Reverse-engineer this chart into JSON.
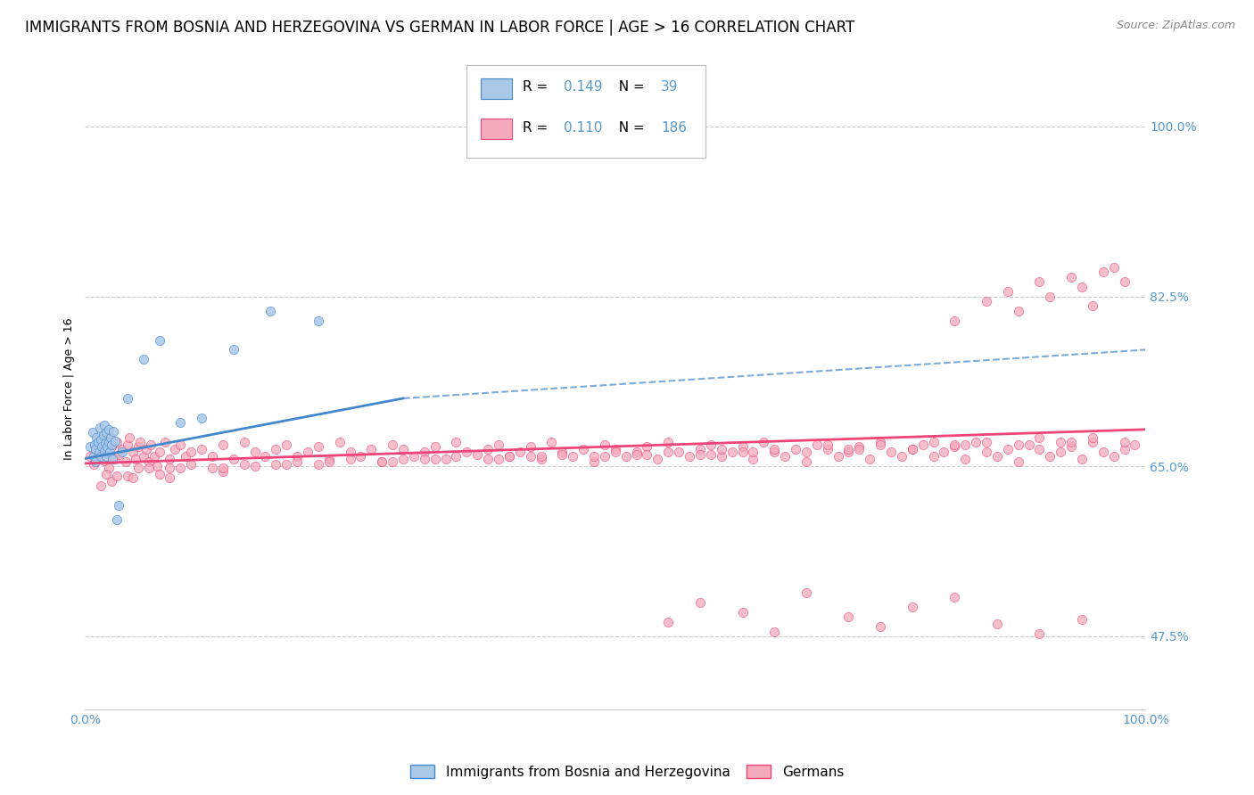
{
  "title": "IMMIGRANTS FROM BOSNIA AND HERZEGOVINA VS GERMAN IN LABOR FORCE | AGE > 16 CORRELATION CHART",
  "source": "Source: ZipAtlas.com",
  "ylabel": "In Labor Force | Age > 16",
  "legend1_label": "Immigrants from Bosnia and Herzegovina",
  "legend2_label": "Germans",
  "R1": 0.149,
  "N1": 39,
  "R2": 0.11,
  "N2": 186,
  "xlim": [
    0.0,
    1.0
  ],
  "ylim": [
    0.4,
    1.06
  ],
  "yticks": [
    0.475,
    0.65,
    0.825,
    1.0
  ],
  "ytick_labels": [
    "47.5%",
    "65.0%",
    "82.5%",
    "100.0%"
  ],
  "xticks": [
    0.0,
    1.0
  ],
  "xtick_labels": [
    "0.0%",
    "100.0%"
  ],
  "grid_color": "#cccccc",
  "bg_color": "#ffffff",
  "color1": "#aac8e8",
  "color2": "#f4aabb",
  "line1_color": "#4488cc",
  "line2_color": "#ee4477",
  "tick_color": "#5599cc",
  "title_fontsize": 12,
  "axis_label_fontsize": 9,
  "tick_fontsize": 10,
  "bosnia_x": [
    0.005,
    0.007,
    0.008,
    0.009,
    0.01,
    0.01,
    0.011,
    0.012,
    0.013,
    0.014,
    0.015,
    0.015,
    0.016,
    0.017,
    0.018,
    0.018,
    0.019,
    0.02,
    0.02,
    0.021,
    0.022,
    0.022,
    0.023,
    0.024,
    0.025,
    0.026,
    0.027,
    0.028,
    0.03,
    0.032,
    0.035,
    0.04,
    0.055,
    0.07,
    0.09,
    0.11,
    0.14,
    0.175,
    0.22
  ],
  "bosnia_y": [
    0.67,
    0.685,
    0.66,
    0.672,
    0.668,
    0.655,
    0.68,
    0.675,
    0.665,
    0.69,
    0.66,
    0.678,
    0.67,
    0.682,
    0.666,
    0.692,
    0.674,
    0.66,
    0.685,
    0.67,
    0.675,
    0.688,
    0.665,
    0.68,
    0.672,
    0.658,
    0.686,
    0.676,
    0.595,
    0.61,
    0.665,
    0.72,
    0.76,
    0.78,
    0.695,
    0.7,
    0.77,
    0.81,
    0.8
  ],
  "german_x": [
    0.005,
    0.008,
    0.01,
    0.012,
    0.015,
    0.018,
    0.02,
    0.022,
    0.025,
    0.028,
    0.03,
    0.032,
    0.035,
    0.038,
    0.04,
    0.042,
    0.045,
    0.048,
    0.05,
    0.052,
    0.055,
    0.058,
    0.06,
    0.062,
    0.065,
    0.068,
    0.07,
    0.075,
    0.08,
    0.085,
    0.09,
    0.095,
    0.1,
    0.11,
    0.12,
    0.13,
    0.14,
    0.15,
    0.16,
    0.17,
    0.18,
    0.19,
    0.2,
    0.21,
    0.22,
    0.23,
    0.24,
    0.25,
    0.26,
    0.27,
    0.28,
    0.29,
    0.3,
    0.31,
    0.32,
    0.33,
    0.34,
    0.35,
    0.36,
    0.37,
    0.38,
    0.39,
    0.4,
    0.41,
    0.42,
    0.43,
    0.44,
    0.45,
    0.46,
    0.47,
    0.48,
    0.49,
    0.5,
    0.51,
    0.52,
    0.53,
    0.54,
    0.55,
    0.56,
    0.57,
    0.58,
    0.59,
    0.6,
    0.61,
    0.62,
    0.63,
    0.64,
    0.65,
    0.66,
    0.67,
    0.68,
    0.69,
    0.7,
    0.71,
    0.72,
    0.73,
    0.74,
    0.75,
    0.76,
    0.77,
    0.78,
    0.79,
    0.8,
    0.81,
    0.82,
    0.83,
    0.84,
    0.85,
    0.86,
    0.87,
    0.88,
    0.89,
    0.9,
    0.91,
    0.92,
    0.93,
    0.94,
    0.95,
    0.96,
    0.97,
    0.98,
    0.99,
    0.04,
    0.06,
    0.08,
    0.1,
    0.13,
    0.16,
    0.015,
    0.025,
    0.045,
    0.07,
    0.2,
    0.3,
    0.4,
    0.5,
    0.6,
    0.7,
    0.8,
    0.9,
    0.05,
    0.15,
    0.25,
    0.35,
    0.45,
    0.55,
    0.65,
    0.75,
    0.85,
    0.95,
    0.02,
    0.12,
    0.22,
    0.32,
    0.42,
    0.52,
    0.62,
    0.72,
    0.82,
    0.92,
    0.03,
    0.13,
    0.23,
    0.33,
    0.43,
    0.53,
    0.63,
    0.73,
    0.83,
    0.93,
    0.08,
    0.18,
    0.28,
    0.38,
    0.48,
    0.58,
    0.68,
    0.78,
    0.88,
    0.98,
    0.09,
    0.19,
    0.29,
    0.39,
    0.49,
    0.59
  ],
  "german_y": [
    0.66,
    0.652,
    0.658,
    0.665,
    0.672,
    0.656,
    0.68,
    0.648,
    0.67,
    0.658,
    0.675,
    0.662,
    0.668,
    0.655,
    0.672,
    0.68,
    0.665,
    0.658,
    0.67,
    0.675,
    0.66,
    0.668,
    0.655,
    0.672,
    0.66,
    0.65,
    0.665,
    0.675,
    0.658,
    0.668,
    0.672,
    0.66,
    0.665,
    0.668,
    0.66,
    0.672,
    0.658,
    0.675,
    0.665,
    0.66,
    0.668,
    0.672,
    0.66,
    0.665,
    0.67,
    0.658,
    0.675,
    0.665,
    0.66,
    0.668,
    0.655,
    0.672,
    0.668,
    0.66,
    0.665,
    0.67,
    0.658,
    0.675,
    0.665,
    0.662,
    0.668,
    0.672,
    0.66,
    0.665,
    0.67,
    0.658,
    0.675,
    0.665,
    0.66,
    0.668,
    0.655,
    0.672,
    0.668,
    0.66,
    0.665,
    0.67,
    0.658,
    0.675,
    0.665,
    0.66,
    0.668,
    0.672,
    0.66,
    0.665,
    0.67,
    0.658,
    0.675,
    0.665,
    0.66,
    0.668,
    0.655,
    0.672,
    0.668,
    0.66,
    0.665,
    0.67,
    0.658,
    0.675,
    0.665,
    0.66,
    0.668,
    0.672,
    0.66,
    0.665,
    0.67,
    0.658,
    0.675,
    0.665,
    0.66,
    0.668,
    0.655,
    0.672,
    0.668,
    0.66,
    0.665,
    0.67,
    0.658,
    0.675,
    0.665,
    0.66,
    0.668,
    0.672,
    0.64,
    0.648,
    0.638,
    0.652,
    0.645,
    0.65,
    0.63,
    0.635,
    0.638,
    0.642,
    0.655,
    0.658,
    0.66,
    0.665,
    0.668,
    0.672,
    0.675,
    0.68,
    0.648,
    0.652,
    0.658,
    0.66,
    0.662,
    0.665,
    0.668,
    0.672,
    0.675,
    0.68,
    0.642,
    0.648,
    0.652,
    0.658,
    0.66,
    0.662,
    0.665,
    0.668,
    0.672,
    0.675,
    0.64,
    0.648,
    0.655,
    0.658,
    0.66,
    0.662,
    0.665,
    0.668,
    0.672,
    0.675,
    0.648,
    0.652,
    0.655,
    0.658,
    0.66,
    0.662,
    0.665,
    0.668,
    0.672,
    0.675,
    0.648,
    0.652,
    0.655,
    0.658,
    0.66,
    0.662
  ],
  "german_y_outliers_high_x": [
    0.82,
    0.85,
    0.87,
    0.88,
    0.9,
    0.91,
    0.93,
    0.94,
    0.95,
    0.96,
    0.97,
    0.98
  ],
  "german_y_outliers_high_y": [
    0.8,
    0.82,
    0.83,
    0.81,
    0.84,
    0.825,
    0.845,
    0.835,
    0.815,
    0.85,
    0.855,
    0.84
  ],
  "german_y_outliers_low_x": [
    0.55,
    0.58,
    0.62,
    0.65,
    0.68,
    0.72,
    0.75,
    0.78,
    0.82,
    0.86,
    0.9,
    0.94
  ],
  "german_y_outliers_low_y": [
    0.49,
    0.51,
    0.5,
    0.48,
    0.52,
    0.495,
    0.485,
    0.505,
    0.515,
    0.488,
    0.478,
    0.492
  ],
  "trendline1_x0": 0.0,
  "trendline1_y0": 0.658,
  "trendline1_x1": 0.3,
  "trendline1_y1": 0.72,
  "trendline1_dash_x1": 1.0,
  "trendline1_dash_y1": 0.77,
  "trendline2_x0": 0.0,
  "trendline2_y0": 0.653,
  "trendline2_x1": 1.0,
  "trendline2_y1": 0.688
}
